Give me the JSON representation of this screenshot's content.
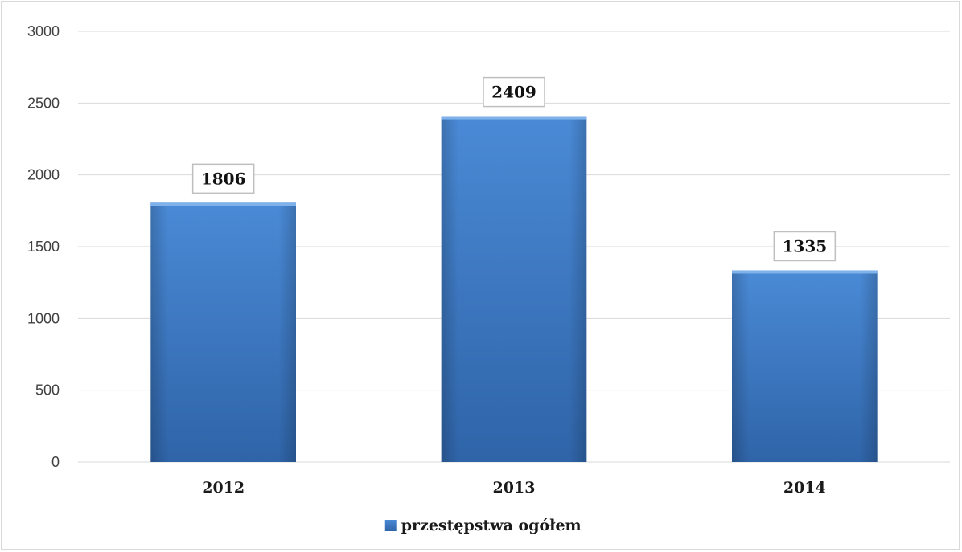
{
  "chart_data": {
    "type": "bar",
    "categories": [
      "2012",
      "2013",
      "2014"
    ],
    "series": [
      {
        "name": "przestępstwa ogółem",
        "values": [
          1806,
          2409,
          1335
        ]
      }
    ],
    "ylim": [
      0,
      3000
    ],
    "yticks": [
      "0",
      "500",
      "1000",
      "1500",
      "2000",
      "2500",
      "3000"
    ],
    "grid": true,
    "legend_position": "bottom",
    "data_labels": true,
    "colors": {
      "bar_top": "#4f8fd9",
      "bar_bottom": "#2d63a8",
      "gridline": "#d9d9d9"
    }
  }
}
